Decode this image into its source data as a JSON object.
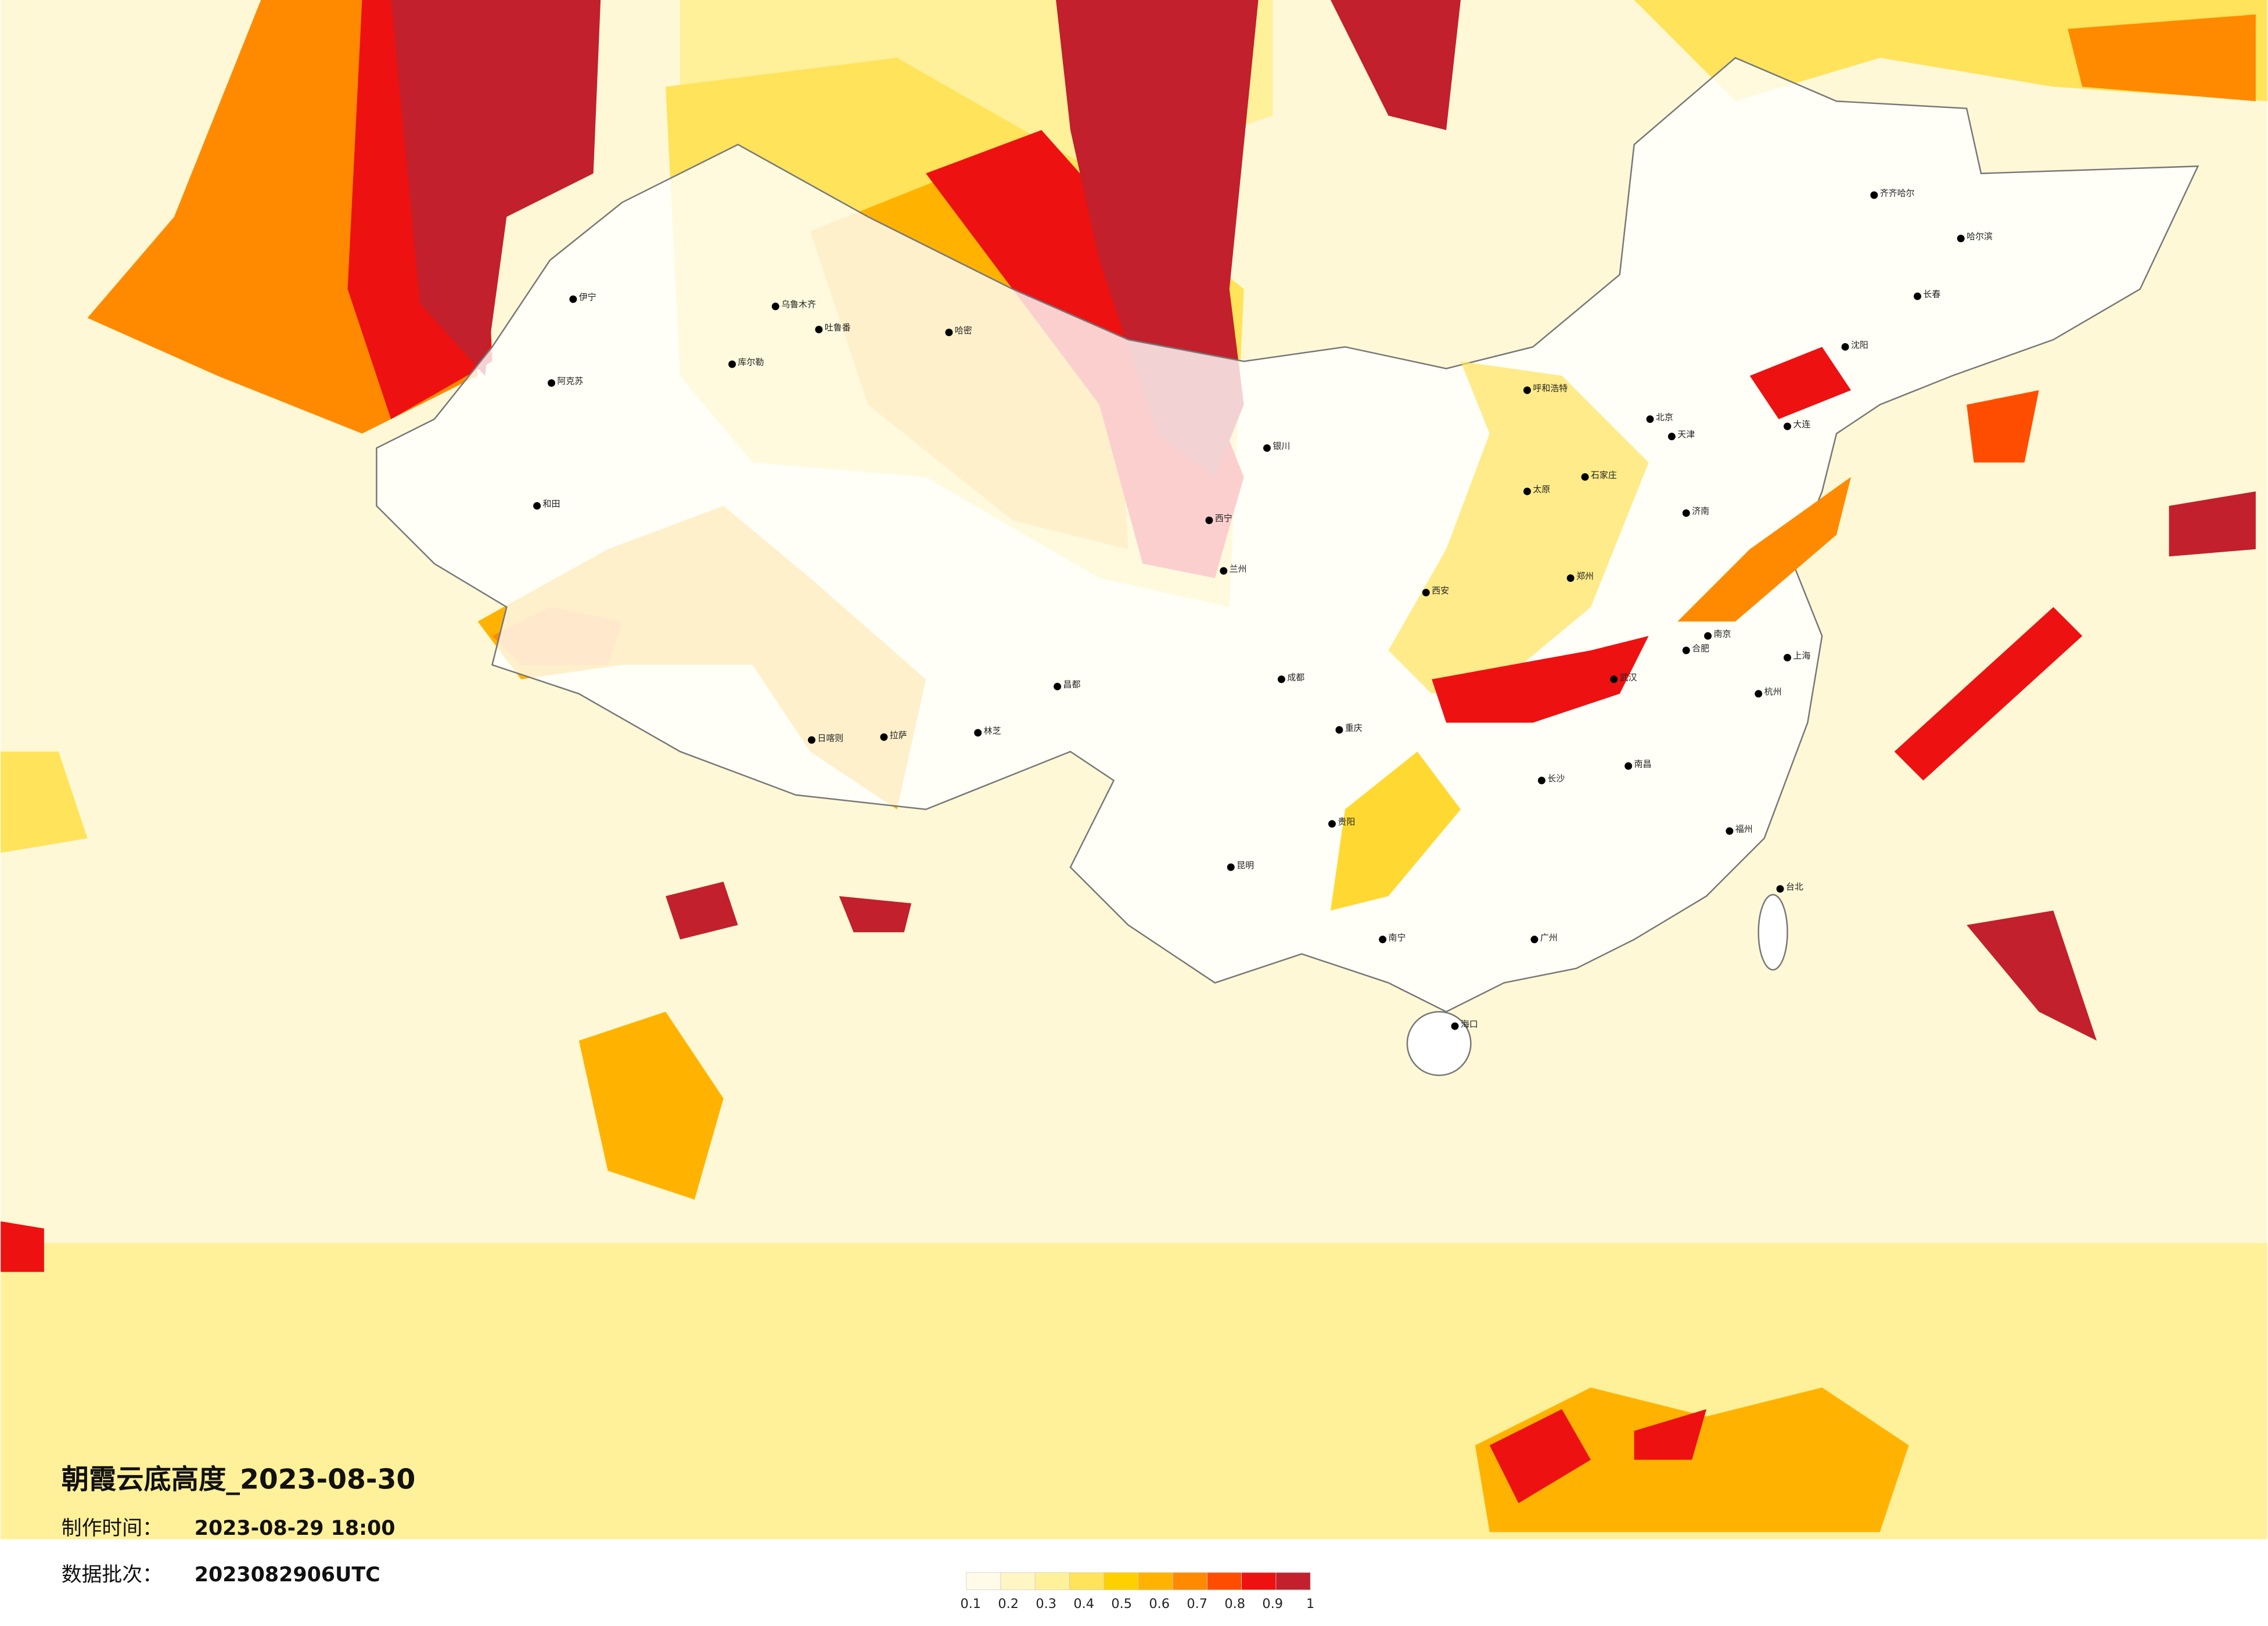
{
  "title": "朝霞云底高度_2023-08-30",
  "produced_label": "制作时间：",
  "produced_time": "2023-08-29 18:00",
  "batch_label": "数据批次：",
  "batch": "2023082906UTC",
  "legend": {
    "ticks": [
      0.1,
      0.2,
      0.3,
      0.4,
      0.5,
      0.6,
      0.7,
      0.8,
      0.9,
      1
    ],
    "colors": [
      "#fffbe8",
      "#fff6c4",
      "#fff09a",
      "#ffe35a",
      "#ffd000",
      "#ffb300",
      "#ff8a00",
      "#ff4d00",
      "#ee1111",
      "#c1202c"
    ]
  },
  "cities": [
    "伊宁",
    "阿克苏",
    "和田",
    "吐鲁番",
    "乌鲁木齐",
    "哈密",
    "库尔勒",
    "日喀则",
    "拉萨",
    "林芝",
    "昌都",
    "西宁",
    "兰州",
    "银川",
    "呼和浩特",
    "北京",
    "天津",
    "石家庄",
    "太原",
    "济南",
    "郑州",
    "西安",
    "成都",
    "重庆",
    "贵阳",
    "昆明",
    "南宁",
    "广州",
    "长沙",
    "武汉",
    "南昌",
    "合肥",
    "南京",
    "上海",
    "杭州",
    "福州",
    "台北",
    "海口",
    "沈阳",
    "长春",
    "哈尔滨",
    "齐齐哈尔",
    "大连"
  ]
}
